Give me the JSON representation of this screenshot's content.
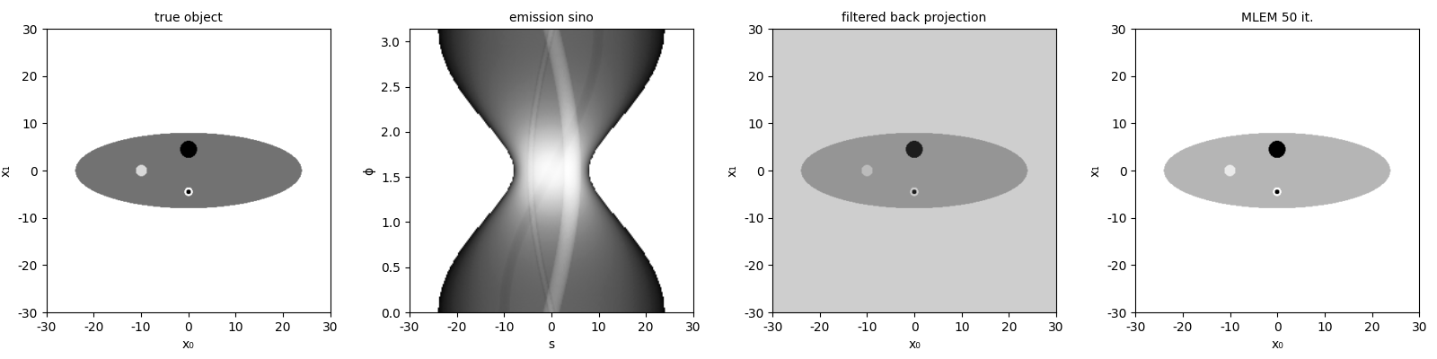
{
  "phantom": {
    "ellipses": [
      {
        "center": [
          0,
          0
        ],
        "axes": [
          24,
          8
        ],
        "value": 1
      }
    ],
    "circles": [
      {
        "center": [
          -10,
          0
        ],
        "radius": 1.2,
        "value": 0.4
      },
      {
        "center": [
          0,
          4.5
        ],
        "radius": 1.8,
        "value": 3
      },
      {
        "center": [
          0,
          -4.5
        ],
        "radius": 0.9,
        "value": 0
      },
      {
        "center": [
          0,
          -4.5
        ],
        "radius": 0.5,
        "value": 3
      }
    ]
  },
  "chart_data": [
    {
      "type": "image",
      "title": "true object",
      "xlabel": "x₀",
      "ylabel": "x₁",
      "xlim": [
        -30,
        30
      ],
      "ylim": [
        -30,
        30
      ],
      "xticks": [
        -30,
        -20,
        -10,
        0,
        10,
        20,
        30
      ],
      "yticks": [
        -30,
        -20,
        -10,
        0,
        10,
        20,
        30
      ],
      "color_range": [
        0,
        1.6
      ]
    },
    {
      "type": "sinogram",
      "title": "emission sino",
      "xlabel": "s",
      "ylabel": "ϕ",
      "xlim": [
        -30,
        30
      ],
      "ylim": [
        0,
        3.14159
      ],
      "xticks": [
        -30,
        -20,
        -10,
        0,
        10,
        20,
        30
      ],
      "yticks": [
        0.0,
        0.5,
        1.0,
        1.5,
        2.0,
        2.5,
        3.0
      ]
    },
    {
      "type": "image",
      "title": "filtered back projection",
      "xlabel": "x₀",
      "ylabel": "x₁",
      "xlim": [
        -30,
        30
      ],
      "ylim": [
        -30,
        30
      ],
      "xticks": [
        -30,
        -20,
        -10,
        0,
        10,
        20,
        30
      ],
      "yticks": [
        -30,
        -20,
        -10,
        0,
        10,
        20,
        30
      ],
      "color_range": [
        -1.5,
        3.5
      ]
    },
    {
      "type": "image",
      "title": "MLEM 50 it.",
      "xlabel": "x₀",
      "ylabel": "x₁",
      "xlim": [
        -30,
        30
      ],
      "ylim": [
        -30,
        30
      ],
      "xticks": [
        -30,
        -20,
        -10,
        0,
        10,
        20,
        30
      ],
      "yticks": [
        -30,
        -20,
        -10,
        0,
        10,
        20,
        30
      ],
      "color_range": [
        0,
        2.5
      ]
    }
  ]
}
